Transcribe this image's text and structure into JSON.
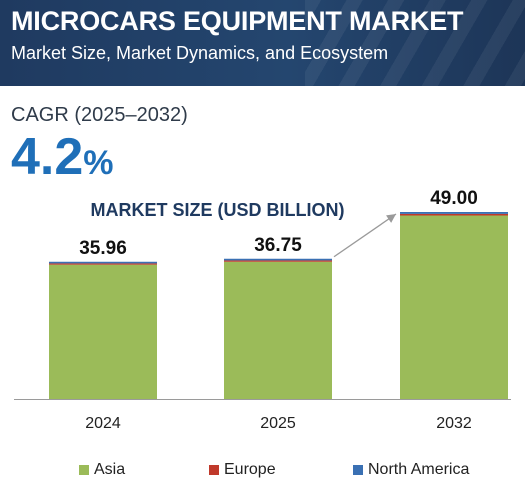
{
  "header": {
    "title": "MICROCARS EQUIPMENT MARKET",
    "subtitle": "Market Size, Market Dynamics, and Ecosystem"
  },
  "cagr": {
    "label": "CAGR (2025–2032)",
    "value": "4.2",
    "unit": "%"
  },
  "colors": {
    "header_bg": "#1f3a60",
    "cagr_value": "#1f6fb8",
    "asia": "#9bbb59",
    "europe": "#c0392b",
    "north_america": "#3a70b3"
  },
  "chart_data": {
    "type": "bar",
    "stacked": true,
    "title": "MARKET SIZE (USD BILLION)",
    "categories": [
      "2024",
      "2025",
      "2032"
    ],
    "totals": [
      35.96,
      36.75,
      49.0
    ],
    "total_labels": [
      "35.96",
      "36.75",
      "49.00"
    ],
    "series": [
      {
        "name": "Asia",
        "values": [
          35.2,
          35.97,
          48.08
        ]
      },
      {
        "name": "Europe",
        "values": [
          0.33,
          0.34,
          0.42
        ]
      },
      {
        "name": "North America",
        "values": [
          0.43,
          0.44,
          0.5
        ]
      }
    ],
    "ylim": [
      0,
      49
    ],
    "grid": false,
    "legend": "bottom",
    "annotation": "growth arrow from 2025 to 2032"
  }
}
